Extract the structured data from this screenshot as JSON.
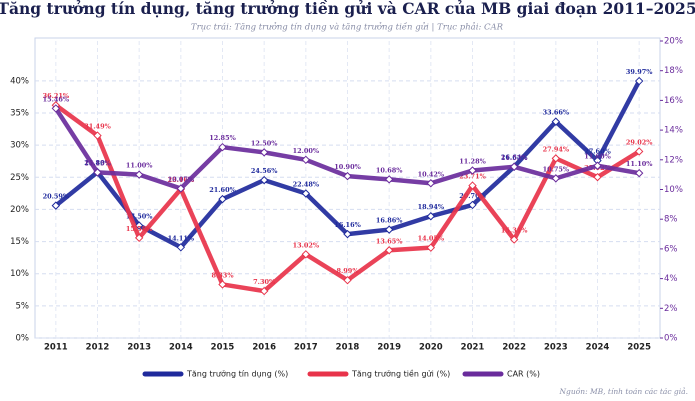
{
  "chart_data": {
    "type": "line",
    "title": "Tăng trưởng tín dụng, tăng trưởng tiền gửi và CAR của MB giai đoạn 2011–2025",
    "subtitle": "Trục trái: Tăng trưởng tín dụng và tăng trưởng tiền gửi | Trục phải: CAR",
    "source": "Nguồn: MB, tính toán các tác giả.",
    "categories": [
      "2011",
      "2012",
      "2013",
      "2014",
      "2015",
      "2016",
      "2017",
      "2018",
      "2019",
      "2020",
      "2021",
      "2022",
      "2023",
      "2024",
      "2025"
    ],
    "series": [
      {
        "name": "Tăng trưởng tín dụng (%)",
        "color": "#1f2a9c",
        "values": [
          20.59,
          25.8,
          17.5,
          14.11,
          21.6,
          24.56,
          22.48,
          16.16,
          16.86,
          18.94,
          20.7,
          26.64,
          33.66,
          27.6,
          39.97
        ],
        "value_labels": [
          "20.59%",
          "25.80%",
          "17.50%",
          "14.11%",
          "21.60%",
          "24.56%",
          "22.48%",
          "16.16%",
          "16.86%",
          "18.94%",
          "20.70%",
          "26.64%",
          "33.66%",
          "27.60%",
          "39.97%"
        ]
      },
      {
        "name": "Tăng trưởng tiền gửi (%)",
        "color": "#e8334a",
        "values": [
          36.21,
          31.49,
          15.58,
          23.16,
          8.33,
          7.3,
          13.02,
          8.99,
          13.65,
          14.05,
          23.71,
          15.31,
          27.94,
          25.02,
          29.02
        ],
        "value_labels": [
          "36.21%",
          "31.49%",
          "15.58%",
          "23.16%",
          "8.33%",
          "7.30%",
          "13.02%",
          "8.99%",
          "13.65%",
          "14.05%",
          "23.71%",
          "15.31%",
          "27.94%",
          "25.02%",
          "29.02%"
        ]
      },
      {
        "name": "CAR (%)",
        "color": "#6a2c9c",
        "axis": "y2",
        "values": [
          15.46,
          11.15,
          11.0,
          10.07,
          12.85,
          12.5,
          12.0,
          10.9,
          10.68,
          10.42,
          11.28,
          11.53,
          10.75,
          11.6,
          11.1
        ],
        "value_labels": [
          "15.46%",
          "11.15%",
          "11.00%",
          "10.07%",
          "12.85%",
          "12.50%",
          "12.00%",
          "10.90%",
          "10.68%",
          "10.42%",
          "11.28%",
          "11.53%",
          "10.75%",
          "11.60%",
          "11.10%"
        ]
      }
    ],
    "ylim": [
      0,
      46.2
    ],
    "yticks": [
      {
        "value": 0,
        "label": "0%"
      },
      {
        "value": 5,
        "label": "5%"
      },
      {
        "value": 10,
        "label": "10%"
      },
      {
        "value": 15,
        "label": "15%"
      },
      {
        "value": 20,
        "label": "20%"
      },
      {
        "value": 25,
        "label": "25%"
      },
      {
        "value": 30,
        "label": "30%"
      },
      {
        "value": 35,
        "label": "35%"
      },
      {
        "value": 40,
        "label": "40%"
      }
    ],
    "y2lim": [
      0,
      20
    ],
    "y2ticks": [
      {
        "value": 0,
        "label": "0%"
      },
      {
        "value": 2,
        "label": "2%"
      },
      {
        "value": 4,
        "label": "4%"
      },
      {
        "value": 6,
        "label": "6%"
      },
      {
        "value": 8,
        "label": "8%"
      },
      {
        "value": 10,
        "label": "10%"
      },
      {
        "value": 12,
        "label": "12%"
      },
      {
        "value": 14,
        "label": "14%"
      },
      {
        "value": 16,
        "label": "16%"
      },
      {
        "value": 18,
        "label": "18%"
      },
      {
        "value": 20,
        "label": "20%"
      }
    ],
    "grid": true
  }
}
